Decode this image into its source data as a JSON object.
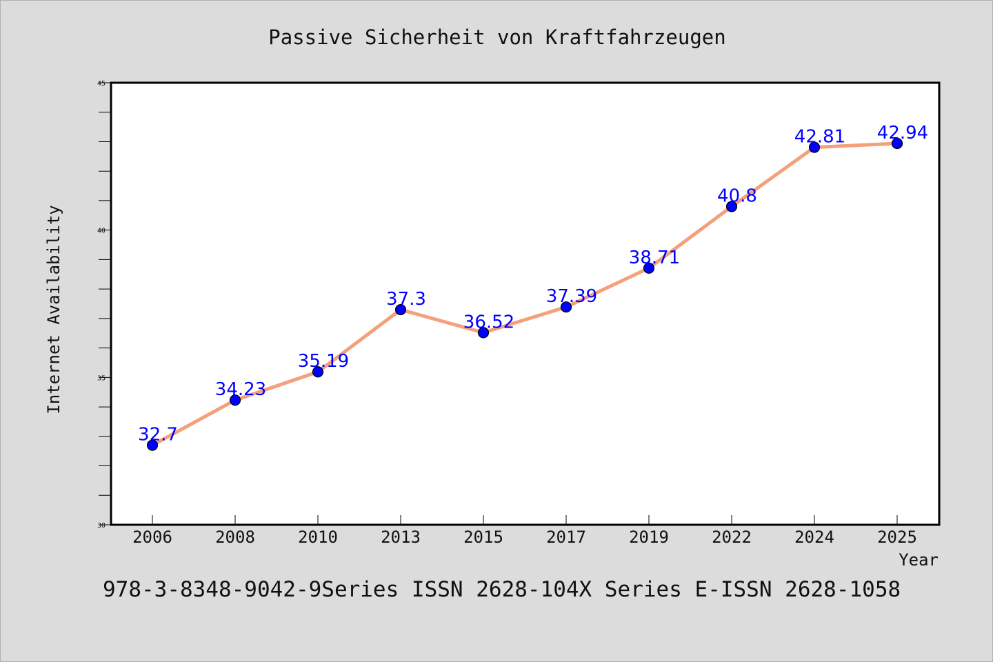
{
  "chart_data": {
    "type": "line",
    "title": "Passive Sicherheit von Kraftfahrzeugen",
    "xlabel": "Year",
    "ylabel": "Internet Availability",
    "categories": [
      "2006",
      "2008",
      "2010",
      "2013",
      "2015",
      "2017",
      "2019",
      "2022",
      "2024",
      "2025"
    ],
    "series": [
      {
        "values": [
          32.7,
          34.23,
          35.19,
          37.3,
          36.52,
          37.39,
          38.71,
          40.8,
          42.81,
          42.94
        ],
        "data_labels": [
          "32.7",
          "34.23",
          "35.19",
          "37.3",
          "36.52",
          "37.39",
          "38.71",
          "40.8",
          "42.81",
          "42.94"
        ]
      }
    ],
    "ylim": [
      30,
      45
    ],
    "yticks": [
      30,
      35,
      40,
      45
    ],
    "ytick_labels": [
      "30",
      "35",
      "40",
      "45"
    ],
    "grid": false,
    "legend": "none",
    "colors": {
      "line": "#f4a07a",
      "marker": "#0000ff",
      "data_label": "#0000ff",
      "background": "#dcdcdc",
      "plot_area": "#ffffff"
    }
  },
  "footer": {
    "text": "978-3-8348-9042-9Series ISSN 2628-104X Series E-ISSN 2628-1058"
  }
}
